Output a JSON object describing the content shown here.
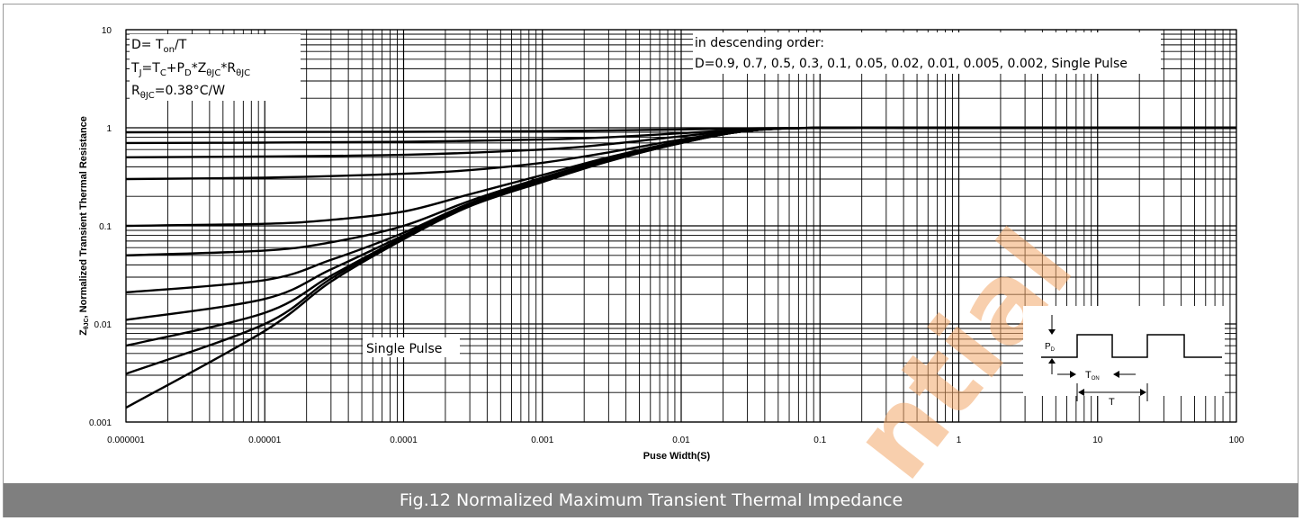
{
  "caption": "Fig.12 Normalized Maximum Transient Thermal Impedance",
  "watermark": "ntial",
  "colors": {
    "caption_bg": "#7f7f7f",
    "caption_text": "#ffffff",
    "watermark": "#f2a86a",
    "lines": "#000000"
  },
  "chart_data": {
    "type": "line",
    "x_scale": "log",
    "y_scale": "log",
    "xlim": [
      1e-06,
      100
    ],
    "ylim": [
      0.001,
      10
    ],
    "xlabel": "Puse Width(S)",
    "ylabel_parts": {
      "main": "Z",
      "sub": "θJC",
      "rest": ", Normalized Transient Thermal Resistance"
    },
    "x_ticks": [
      "0.000001",
      "0.00001",
      "0.0001",
      "0.001",
      "0.01",
      "0.1",
      "1",
      "10",
      "100"
    ],
    "y_ticks": [
      "0.001",
      "0.01",
      "0.1",
      "1",
      "10"
    ],
    "grid": true,
    "annotations": {
      "formula_lines": [
        [
          {
            "t": "D= T"
          },
          {
            "t": "on",
            "sub": true
          },
          {
            "t": "/T"
          }
        ],
        [
          {
            "t": "T"
          },
          {
            "t": "J",
            "sub": true
          },
          {
            "t": "=T"
          },
          {
            "t": "C",
            "sub": true
          },
          {
            "t": "+P"
          },
          {
            "t": "D",
            "sub": true
          },
          {
            "t": "*Z"
          },
          {
            "t": "θJC",
            "sub": true
          },
          {
            "t": "*R"
          },
          {
            "t": "θJC",
            "sub": true
          }
        ],
        [
          {
            "t": "R"
          },
          {
            "t": "θJC",
            "sub": true
          },
          {
            "t": "=0.38°C/W"
          }
        ]
      ],
      "order_line1": "in descending order:",
      "order_line2": "D=0.9, 0.7, 0.5, 0.3, 0.1, 0.05, 0.02, 0.01, 0.005, 0.002, Single Pulse",
      "single_pulse_label": "Single Pulse"
    },
    "inset": {
      "pd_label": "P",
      "pd_sub": "D",
      "ton_label": "T",
      "ton_sub": "ON",
      "t_label": "T"
    },
    "series": [
      {
        "duty": 0.9,
        "x": [
          1e-06,
          1e-05,
          0.0001,
          0.001,
          0.003,
          0.01,
          0.03,
          0.1,
          1,
          100
        ],
        "y": [
          0.9,
          0.905,
          0.91,
          0.925,
          0.94,
          0.96,
          0.985,
          1.0,
          1.0,
          1.0
        ]
      },
      {
        "duty": 0.7,
        "x": [
          1e-06,
          1e-05,
          0.0001,
          0.001,
          0.003,
          0.01,
          0.03,
          0.1,
          1,
          100
        ],
        "y": [
          0.7,
          0.705,
          0.72,
          0.76,
          0.8,
          0.88,
          0.96,
          1.0,
          1.0,
          1.0
        ]
      },
      {
        "duty": 0.5,
        "x": [
          1e-06,
          1e-05,
          0.0001,
          0.001,
          0.003,
          0.01,
          0.03,
          0.1,
          1,
          100
        ],
        "y": [
          0.5,
          0.51,
          0.53,
          0.6,
          0.68,
          0.82,
          0.95,
          1.0,
          1.0,
          1.0
        ]
      },
      {
        "duty": 0.3,
        "x": [
          1e-06,
          1e-05,
          0.0001,
          0.0003,
          0.001,
          0.003,
          0.01,
          0.03,
          0.1,
          1,
          100
        ],
        "y": [
          0.3,
          0.31,
          0.34,
          0.37,
          0.44,
          0.56,
          0.76,
          0.94,
          1.0,
          1.0,
          1.0
        ]
      },
      {
        "duty": 0.1,
        "x": [
          1e-06,
          1e-05,
          3e-05,
          0.0001,
          0.0003,
          0.001,
          0.003,
          0.01,
          0.03,
          0.1,
          1,
          100
        ],
        "y": [
          0.1,
          0.105,
          0.115,
          0.14,
          0.21,
          0.33,
          0.5,
          0.73,
          0.93,
          1.0,
          1.0,
          1.0
        ]
      },
      {
        "duty": 0.05,
        "x": [
          1e-06,
          1e-05,
          3e-05,
          0.0001,
          0.0003,
          0.001,
          0.003,
          0.01,
          0.03,
          0.1,
          1,
          100
        ],
        "y": [
          0.05,
          0.056,
          0.068,
          0.1,
          0.18,
          0.31,
          0.48,
          0.72,
          0.93,
          1.0,
          1.0,
          1.0
        ]
      },
      {
        "duty": 0.02,
        "x": [
          1e-06,
          1e-05,
          3e-05,
          0.0001,
          0.0003,
          0.001,
          0.003,
          0.01,
          0.03,
          0.1,
          1,
          100
        ],
        "y": [
          0.021,
          0.028,
          0.045,
          0.085,
          0.17,
          0.3,
          0.47,
          0.71,
          0.93,
          1.0,
          1.0,
          1.0
        ]
      },
      {
        "duty": 0.01,
        "x": [
          1e-06,
          1e-05,
          3e-05,
          0.0001,
          0.0003,
          0.001,
          0.003,
          0.01,
          0.03,
          0.1,
          1,
          100
        ],
        "y": [
          0.011,
          0.018,
          0.036,
          0.08,
          0.165,
          0.295,
          0.47,
          0.71,
          0.93,
          1.0,
          1.0,
          1.0
        ]
      },
      {
        "duty": 0.005,
        "x": [
          1e-06,
          1e-05,
          3e-05,
          0.0001,
          0.0003,
          0.001,
          0.003,
          0.01,
          0.03,
          0.1,
          1,
          100
        ],
        "y": [
          0.006,
          0.013,
          0.031,
          0.077,
          0.162,
          0.29,
          0.465,
          0.705,
          0.93,
          1.0,
          1.0,
          1.0
        ]
      },
      {
        "duty": 0.002,
        "x": [
          1e-06,
          1e-05,
          3e-05,
          0.0001,
          0.0003,
          0.001,
          0.003,
          0.01,
          0.03,
          0.1,
          1,
          100
        ],
        "y": [
          0.0031,
          0.01,
          0.029,
          0.075,
          0.16,
          0.285,
          0.46,
          0.7,
          0.93,
          1.0,
          1.0,
          1.0
        ]
      },
      {
        "duty": "Single Pulse",
        "x": [
          1e-06,
          1e-05,
          3e-05,
          0.0001,
          0.0003,
          0.001,
          0.003,
          0.01,
          0.03,
          0.1,
          1,
          100
        ],
        "y": [
          0.0014,
          0.0085,
          0.027,
          0.073,
          0.158,
          0.28,
          0.455,
          0.7,
          0.93,
          1.0,
          1.0,
          1.0
        ]
      }
    ]
  }
}
